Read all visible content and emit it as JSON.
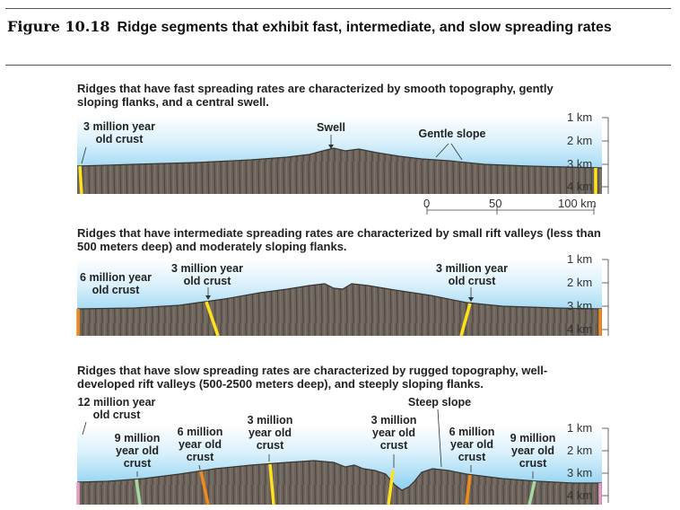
{
  "figure": {
    "number": "Figure 10.18",
    "title": "Ridge segments that exhibit fast, intermediate, and slow spreading rates"
  },
  "panels": {
    "fast": {
      "caption": "Ridges that have fast spreading rates are characterized by smooth topography, gently sloping flanks, and a central swell.",
      "labels": {
        "crust_left_1": "3 million year",
        "crust_left_2": "old crust",
        "swell": "Swell",
        "gentle_slope": "Gentle slope"
      },
      "depth_scale": [
        "1 km",
        "2 km",
        "3 km",
        "4 km"
      ],
      "distance_scale": [
        "0",
        "50",
        "100 km"
      ]
    },
    "intermediate": {
      "caption": "Ridges that have intermediate spreading rates are characterized by small rift valleys (less than 500 meters deep) and moderately sloping flanks.",
      "labels": {
        "six_1": "6 million year",
        "six_2": "old crust",
        "three_left_1": "3 million year",
        "three_left_2": "old crust",
        "three_right_1": "3 million year",
        "three_right_2": "old crust"
      },
      "depth_scale": [
        "1 km",
        "2 km",
        "3 km",
        "4 km"
      ]
    },
    "slow": {
      "caption": "Ridges that have slow spreading rates are characterized by rugged topography, well-developed rift valleys (500-2500 meters deep), and steeply sloping flanks.",
      "labels": {
        "twelve_1": "12 million year",
        "twelve_2": "old crust",
        "nine_left": [
          "9 million",
          "year old",
          "crust"
        ],
        "six_left": [
          "6 million",
          "year old",
          "crust"
        ],
        "three_left": [
          "3 million",
          "year old",
          "crust"
        ],
        "three_right": [
          "3 million",
          "year old",
          "crust"
        ],
        "six_right": [
          "6 million",
          "year old",
          "crust"
        ],
        "nine_right": [
          "9 million",
          "year old",
          "crust"
        ],
        "steep_slope": "Steep slope"
      },
      "depth_scale": [
        "1 km",
        "2 km",
        "3 km",
        "4 km"
      ]
    }
  },
  "colors": {
    "crust": "#6e655d",
    "crust_dark": "#4a433d",
    "sea_top": "#ffffff",
    "sea_bottom": "#6cc4ec",
    "yellow": "#ffe21a",
    "orange": "#f08a1c",
    "green": "#a6d9a0",
    "pink": "#e89bc6"
  }
}
